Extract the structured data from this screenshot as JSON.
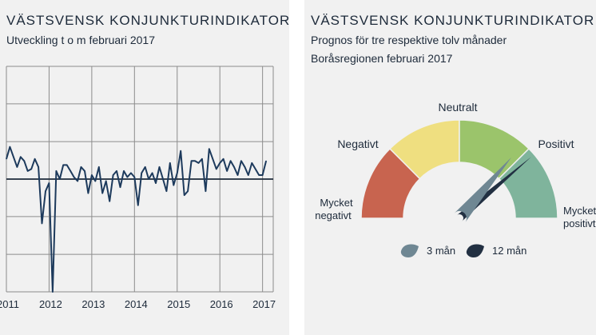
{
  "left_panel": {
    "title": "VÄSTSVENSK KONJUNKTURINDIKATOR",
    "subtitle": "Utveckling t o m februari 2017"
  },
  "right_panel": {
    "title": "VÄSTSVENSK KONJUNKTURINDIKATOR",
    "subtitle_line1": "Prognos för tre respektive tolv månader",
    "subtitle_line2": "Boråsregionen februari 2017"
  },
  "colors": {
    "line": "#1d3a5c",
    "zero_line": "#1d2a3a",
    "grid": "#8c8c8c",
    "seg_very_negative": "#c8644f",
    "seg_negative": "#efdf80",
    "seg_neutral": "#9bc46b",
    "seg_positive": "#7fb49c",
    "needle_3": "#6f8793",
    "needle_12": "#223042"
  },
  "chart_data": [
    {
      "type": "line",
      "title": "VÄSTSVENSK KONJUNKTURINDIKATOR",
      "subtitle": "Utveckling t o m februari 2017",
      "x_tick_labels": [
        "2011",
        "2012",
        "2013",
        "2014",
        "2015",
        "2016",
        "2017"
      ],
      "x_ticks": [
        2011,
        2012,
        2013,
        2014,
        2015,
        2016,
        2017
      ],
      "xlim": [
        2011.0,
        2017.25
      ],
      "ylim": [
        -2.8,
        2.8
      ],
      "gridlines_y": [
        -2.8,
        -1.87,
        -0.93,
        0,
        0.93,
        1.87,
        2.8
      ],
      "grid": true,
      "series": [
        {
          "name": "Västsvensk konjunkturindikator",
          "x": [
            2011.0,
            2011.083,
            2011.167,
            2011.25,
            2011.333,
            2011.417,
            2011.5,
            2011.583,
            2011.667,
            2011.75,
            2011.833,
            2011.917,
            2012.0,
            2012.083,
            2012.167,
            2012.25,
            2012.333,
            2012.417,
            2012.5,
            2012.583,
            2012.667,
            2012.75,
            2012.833,
            2012.917,
            2013.0,
            2013.083,
            2013.167,
            2013.25,
            2013.333,
            2013.417,
            2013.5,
            2013.583,
            2013.667,
            2013.75,
            2013.833,
            2013.917,
            2014.0,
            2014.083,
            2014.167,
            2014.25,
            2014.333,
            2014.417,
            2014.5,
            2014.583,
            2014.667,
            2014.75,
            2014.833,
            2014.917,
            2015.0,
            2015.083,
            2015.167,
            2015.25,
            2015.333,
            2015.417,
            2015.5,
            2015.583,
            2015.667,
            2015.75,
            2015.833,
            2015.917,
            2016.0,
            2016.083,
            2016.167,
            2016.25,
            2016.333,
            2016.417,
            2016.5,
            2016.583,
            2016.667,
            2016.75,
            2016.833,
            2016.917,
            2017.0,
            2017.083
          ],
          "values": [
            0.5,
            0.8,
            0.55,
            0.3,
            0.55,
            0.45,
            0.2,
            0.25,
            0.5,
            0.3,
            -1.1,
            -0.3,
            -0.1,
            -2.8,
            0.2,
            0.0,
            0.35,
            0.35,
            0.2,
            0.05,
            -0.05,
            0.3,
            0.2,
            -0.35,
            0.1,
            -0.05,
            0.3,
            -0.35,
            -0.05,
            -0.55,
            0.1,
            0.2,
            -0.2,
            0.2,
            0.05,
            0.15,
            0.05,
            -0.65,
            0.15,
            0.3,
            0.0,
            0.15,
            -0.1,
            0.3,
            0.0,
            -0.3,
            0.4,
            -0.15,
            0.15,
            0.7,
            -0.4,
            -0.3,
            0.45,
            0.45,
            0.4,
            0.5,
            -0.3,
            0.75,
            0.5,
            0.25,
            0.4,
            0.5,
            0.2,
            0.45,
            0.3,
            0.1,
            0.45,
            0.3,
            0.1,
            0.4,
            0.25,
            0.1,
            0.1,
            0.45
          ]
        }
      ]
    },
    {
      "type": "gauge",
      "title": "VÄSTSVENSK KONJUNKTURINDIKATOR",
      "subtitle": [
        "Prognos för tre respektive tolv månader",
        "Boråsregionen februari 2017"
      ],
      "scale": [
        -2,
        2
      ],
      "segments": [
        {
          "label": "Mycket negativt",
          "from": -2,
          "to": -1
        },
        {
          "label": "Negativt",
          "from": -1,
          "to": 0
        },
        {
          "label": "Neutralt",
          "from": 0,
          "to": 1
        },
        {
          "label": "Positivt",
          "from": 1,
          "to": 2
        }
      ],
      "segment_labels": {
        "very_negative_1": "Mycket",
        "very_negative_2": "negativt",
        "negative": "Negativt",
        "neutral": "Neutralt",
        "positive": "Positivt",
        "very_positive_1": "Mycket",
        "very_positive_2": "positivt"
      },
      "needles": [
        {
          "label": "3 mån",
          "value": 0.9
        },
        {
          "label": "12 mån",
          "value": 1.1
        }
      ]
    }
  ]
}
